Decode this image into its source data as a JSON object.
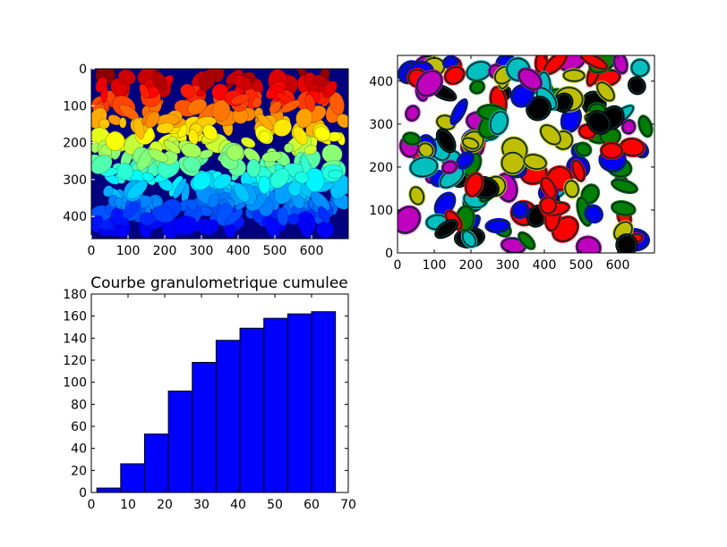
{
  "figure": {
    "background": "#ffffff"
  },
  "chart_data": [
    {
      "type": "heatmap",
      "description_hint": "labeled segmentation image rendered with a jet colormap",
      "xticks": [
        "0",
        "100",
        "200",
        "300",
        "400",
        "500",
        "600"
      ],
      "yticks": [
        "0",
        "100",
        "200",
        "300",
        "400"
      ],
      "xlim": [
        0,
        700
      ],
      "ylim": [
        460,
        0
      ],
      "colormap": "jet",
      "grid": false
    },
    {
      "type": "scatter",
      "description_hint": "grains with fitted ellipse outlines",
      "xticks": [
        "0",
        "100",
        "200",
        "300",
        "400",
        "500",
        "600"
      ],
      "yticks": [
        "0",
        "100",
        "200",
        "300",
        "400"
      ],
      "xlim": [
        0,
        700
      ],
      "ylim": [
        0,
        460
      ],
      "colors": [
        "#0000ff",
        "#008000",
        "#ff0000",
        "#00bfbf",
        "#bf00bf",
        "#bfbf00",
        "#000000"
      ],
      "grid": false
    },
    {
      "type": "bar",
      "title": "Courbe granulometrique cumulee",
      "xlabel": "",
      "ylabel": "",
      "x": [
        5,
        11.5,
        18,
        24.5,
        31,
        37.5,
        44,
        50.5,
        57,
        63.5
      ],
      "bin_width": 6.5,
      "bin_start": 1.5,
      "values": [
        4,
        26,
        53,
        92,
        118,
        138,
        149,
        158,
        162,
        164
      ],
      "xlim": [
        0,
        70
      ],
      "ylim": [
        0,
        180
      ],
      "xticks": [
        "0",
        "10",
        "20",
        "30",
        "40",
        "50",
        "60",
        "70"
      ],
      "yticks": [
        "0",
        "20",
        "40",
        "60",
        "80",
        "100",
        "120",
        "140",
        "160",
        "180"
      ],
      "bar_color": "#0000ff",
      "edge_color": "#000000",
      "grid": false
    }
  ]
}
